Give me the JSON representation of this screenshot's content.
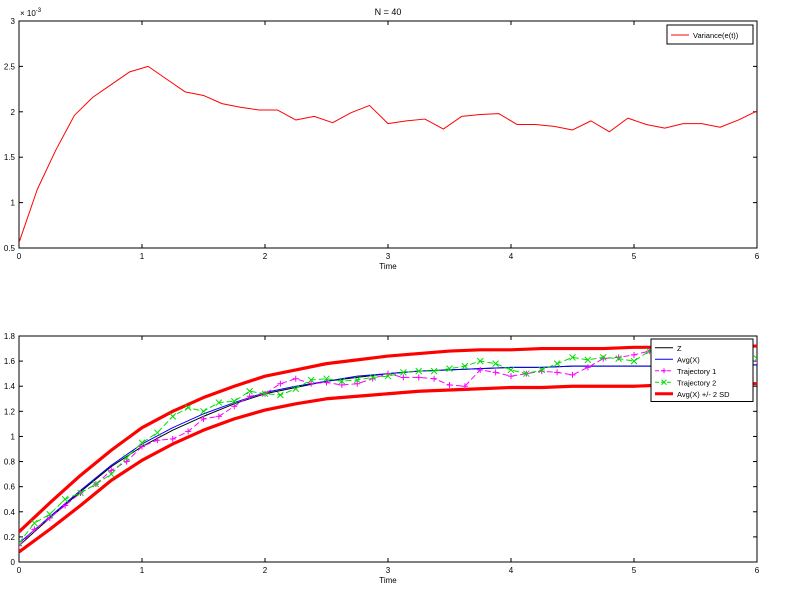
{
  "chart_data": [
    {
      "type": "line",
      "title": "N = 40",
      "xlabel": "Time",
      "ylabel": "",
      "xlim": [
        0,
        6
      ],
      "ylim": [
        0.5,
        3
      ],
      "xticks": [
        "0",
        "1",
        "2",
        "3",
        "4",
        "5",
        "6"
      ],
      "yticks": [
        "0.5",
        "1",
        "1.5",
        "2",
        "2.5",
        "3"
      ],
      "y_exponent_label": "× 10",
      "y_exponent_power": "-3",
      "grid": false,
      "legend_position": "top-right",
      "series": [
        {
          "name": "Variance(e(t))",
          "color": "#ff0000",
          "x": [
            0,
            0.15,
            0.3,
            0.45,
            0.6,
            0.75,
            0.9,
            1.05,
            1.2,
            1.35,
            1.5,
            1.65,
            1.8,
            1.95,
            2.1,
            2.25,
            2.4,
            2.55,
            2.7,
            2.85,
            3.0,
            3.15,
            3.3,
            3.45,
            3.6,
            3.75,
            3.9,
            4.05,
            4.2,
            4.35,
            4.5,
            4.65,
            4.8,
            4.95,
            5.1,
            5.25,
            5.4,
            5.55,
            5.7,
            5.85,
            6.0
          ],
          "values": [
            0.56,
            1.15,
            1.58,
            1.96,
            2.16,
            2.3,
            2.44,
            2.5,
            2.36,
            2.22,
            2.18,
            2.09,
            2.05,
            2.02,
            2.02,
            1.91,
            1.95,
            1.88,
            1.99,
            2.07,
            1.87,
            1.9,
            1.92,
            1.81,
            1.95,
            1.97,
            1.98,
            1.86,
            1.86,
            1.84,
            1.8,
            1.9,
            1.78,
            1.93,
            1.86,
            1.82,
            1.87,
            1.87,
            1.83,
            1.91,
            2.01
          ]
        }
      ]
    },
    {
      "type": "line",
      "title": "",
      "xlabel": "Time",
      "ylabel": "",
      "xlim": [
        0,
        6
      ],
      "ylim": [
        0,
        1.8
      ],
      "xticks": [
        "0",
        "1",
        "2",
        "3",
        "4",
        "5",
        "6"
      ],
      "yticks": [
        "0",
        "0.2",
        "0.4",
        "0.6",
        "0.8",
        "1",
        "1.2",
        "1.4",
        "1.6",
        "1.8"
      ],
      "grid": false,
      "legend_position": "top-right",
      "series": [
        {
          "name": "Z",
          "color": "#000000",
          "x": [
            0,
            0.25,
            0.5,
            0.75,
            1.0,
            1.25,
            1.5,
            1.75,
            2.0,
            2.25,
            2.5,
            2.75,
            3.0,
            3.25,
            3.5,
            3.75,
            4.0,
            4.25,
            4.5,
            4.75,
            5.0,
            5.25,
            5.5,
            5.75,
            6.0
          ],
          "values": [
            0.13,
            0.35,
            0.56,
            0.76,
            0.92,
            1.05,
            1.16,
            1.26,
            1.34,
            1.39,
            1.44,
            1.47,
            1.5,
            1.52,
            1.53,
            1.54,
            1.55,
            1.55,
            1.56,
            1.56,
            1.56,
            1.56,
            1.56,
            1.57,
            1.57
          ]
        },
        {
          "name": "Avg(X)",
          "color": "#0000ff",
          "x": [
            0,
            0.25,
            0.5,
            0.75,
            1.0,
            1.25,
            1.5,
            1.75,
            2.0,
            2.25,
            2.5,
            2.75,
            3.0,
            3.25,
            3.5,
            3.75,
            4.0,
            4.25,
            4.5,
            4.75,
            5.0,
            5.25,
            5.5,
            5.75,
            6.0
          ],
          "values": [
            0.15,
            0.36,
            0.57,
            0.77,
            0.94,
            1.07,
            1.18,
            1.27,
            1.35,
            1.4,
            1.44,
            1.48,
            1.5,
            1.52,
            1.53,
            1.54,
            1.55,
            1.55,
            1.56,
            1.56,
            1.56,
            1.56,
            1.56,
            1.57,
            1.57
          ]
        },
        {
          "name": "Trajectory 1",
          "color": "#ff00ff",
          "marker": "plus",
          "x": [
            0,
            0.125,
            0.25,
            0.375,
            0.5,
            0.625,
            0.75,
            0.875,
            1.0,
            1.125,
            1.25,
            1.375,
            1.5,
            1.625,
            1.75,
            1.875,
            2.0,
            2.125,
            2.25,
            2.375,
            2.5,
            2.625,
            2.75,
            2.875,
            3.0,
            3.125,
            3.25,
            3.375,
            3.5,
            3.625,
            3.75,
            3.875,
            4.0,
            4.125,
            4.25,
            4.375,
            4.5,
            4.625,
            4.75,
            4.875,
            5.0,
            5.125,
            5.25,
            5.375,
            5.5,
            5.625,
            5.75,
            5.875,
            6.0
          ],
          "values": [
            0.13,
            0.26,
            0.35,
            0.45,
            0.55,
            0.62,
            0.73,
            0.8,
            0.92,
            0.97,
            0.98,
            1.04,
            1.14,
            1.16,
            1.24,
            1.32,
            1.34,
            1.42,
            1.46,
            1.42,
            1.43,
            1.41,
            1.42,
            1.46,
            1.5,
            1.47,
            1.47,
            1.46,
            1.41,
            1.4,
            1.53,
            1.51,
            1.48,
            1.5,
            1.52,
            1.51,
            1.49,
            1.55,
            1.62,
            1.63,
            1.65,
            1.68,
            1.72,
            1.67,
            1.67,
            1.63,
            1.6,
            1.58,
            1.6
          ]
        },
        {
          "name": "Trajectory 2",
          "color": "#00dd00",
          "marker": "x",
          "x": [
            0,
            0.125,
            0.25,
            0.375,
            0.5,
            0.625,
            0.75,
            0.875,
            1.0,
            1.125,
            1.25,
            1.375,
            1.5,
            1.625,
            1.75,
            1.875,
            2.0,
            2.125,
            2.25,
            2.375,
            2.5,
            2.625,
            2.75,
            2.875,
            3.0,
            3.125,
            3.25,
            3.375,
            3.5,
            3.625,
            3.75,
            3.875,
            4.0,
            4.125,
            4.25,
            4.375,
            4.5,
            4.625,
            4.75,
            4.875,
            5.0,
            5.125,
            5.25,
            5.375,
            5.5,
            5.625,
            5.75,
            5.875,
            6.0
          ],
          "values": [
            0.15,
            0.31,
            0.38,
            0.5,
            0.55,
            0.62,
            0.7,
            0.83,
            0.95,
            1.03,
            1.16,
            1.23,
            1.2,
            1.27,
            1.28,
            1.36,
            1.34,
            1.33,
            1.38,
            1.45,
            1.46,
            1.44,
            1.45,
            1.47,
            1.48,
            1.51,
            1.52,
            1.52,
            1.54,
            1.56,
            1.6,
            1.58,
            1.53,
            1.5,
            1.53,
            1.58,
            1.63,
            1.61,
            1.63,
            1.62,
            1.6,
            1.68,
            1.66,
            1.69,
            1.66,
            1.66,
            1.63,
            1.61,
            1.62
          ]
        },
        {
          "name": "Avg(X) +/- 2 SD",
          "color": "#ff0000",
          "bold": true,
          "x": [
            0,
            0.25,
            0.5,
            0.75,
            1.0,
            1.25,
            1.5,
            1.75,
            2.0,
            2.25,
            2.5,
            2.75,
            3.0,
            3.25,
            3.5,
            3.75,
            4.0,
            4.25,
            4.5,
            4.75,
            5.0,
            5.25,
            5.5,
            5.75,
            6.0
          ],
          "values": [
            0.24,
            0.47,
            0.69,
            0.89,
            1.07,
            1.2,
            1.31,
            1.4,
            1.48,
            1.53,
            1.58,
            1.61,
            1.64,
            1.66,
            1.68,
            1.69,
            1.69,
            1.7,
            1.7,
            1.7,
            1.71,
            1.71,
            1.71,
            1.72,
            1.72
          ],
          "lower_values": [
            0.08,
            0.26,
            0.45,
            0.65,
            0.81,
            0.94,
            1.05,
            1.14,
            1.21,
            1.26,
            1.3,
            1.32,
            1.34,
            1.36,
            1.37,
            1.38,
            1.39,
            1.39,
            1.4,
            1.4,
            1.4,
            1.41,
            1.41,
            1.42,
            1.42
          ]
        }
      ]
    }
  ]
}
